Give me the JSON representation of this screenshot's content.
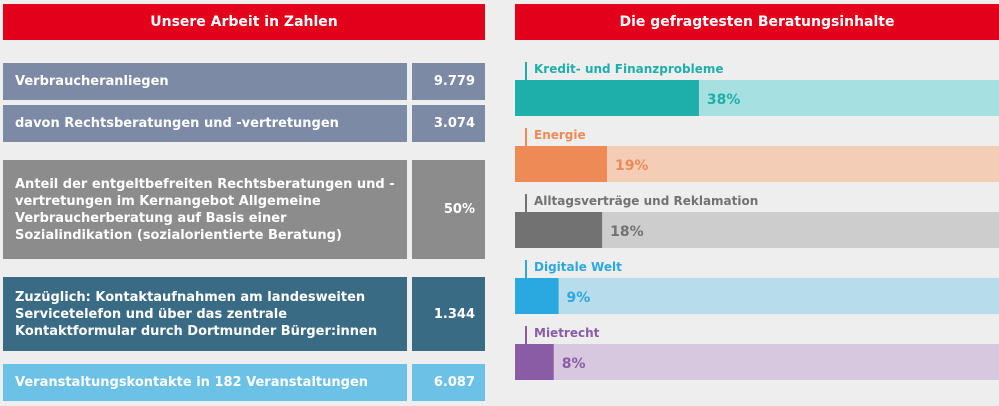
{
  "left": {
    "title": "Unsere Arbeit in Zahlen",
    "rows": [
      {
        "label": "Verbraucheranliegen",
        "value": "9.779",
        "color": "#7d8aa6"
      },
      {
        "label": "davon Rechtsberatungen und -vertretungen",
        "value": "3.074",
        "color": "#7d8aa6"
      },
      {
        "label": "Anteil der entgeltbefreiten Rechtsberatungen und -vertretungen im Kernangebot Allgemeine Verbraucherberatung auf Basis einer Sozialindikation (sozialorientierte Beratung)",
        "value": "50%",
        "color": "#8c8c8c"
      },
      {
        "label": "Zuzüglich: Kontaktaufnahmen am landesweiten Servicetelefon und über das zentrale Kontaktformular durch Dortmunder Bürger:innen",
        "value": "1.344",
        "color": "#3a6b84"
      },
      {
        "label": "Veranstaltungskontakte in 182 Veranstaltungen",
        "value": "6.087",
        "color": "#6cc1e6"
      }
    ]
  },
  "chart_data": {
    "type": "bar",
    "title": "Die gefragtesten Beratungsinhalte",
    "categories": [
      "Kredit- und Finanzprobleme",
      "Energie",
      "Alltagsverträge und Reklamation",
      "Digitale Welt",
      "Mietrecht"
    ],
    "values": [
      38,
      19,
      18,
      9,
      8
    ],
    "value_labels": [
      "38%",
      "19%",
      "18%",
      "9%",
      "8%"
    ],
    "unit": "%",
    "xlim": [
      0,
      100
    ],
    "colors": [
      "#1fafaa",
      "#ee8a55",
      "#727272",
      "#2aa8e0",
      "#8a5ca6"
    ],
    "track_colors": [
      "#a6e0e0",
      "#f3cdb5",
      "#cdcdcd",
      "#b7dcec",
      "#d8c8df"
    ],
    "orientation": "horizontal",
    "grid": false,
    "legend": "none"
  }
}
